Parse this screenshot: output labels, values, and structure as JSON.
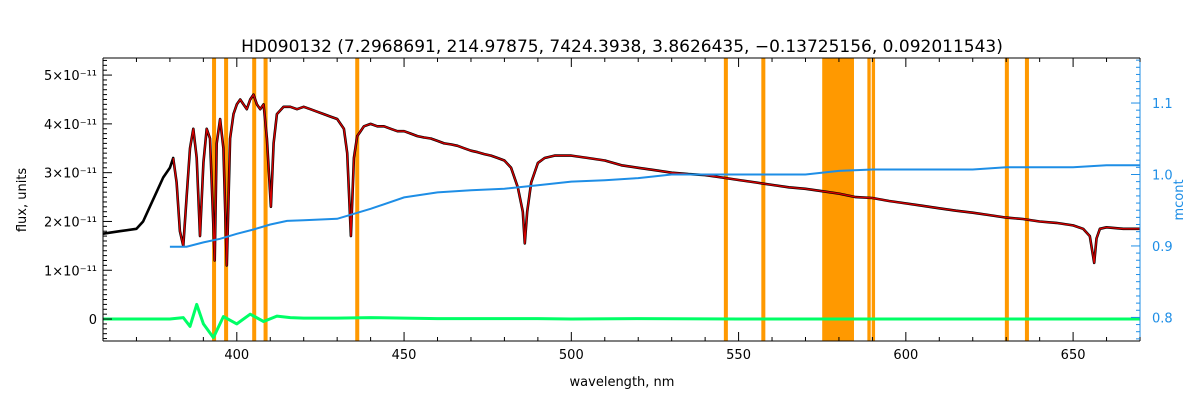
{
  "chart_data": {
    "type": "line",
    "title": "HD090132   (7.2968691, 214.97875, 7424.3938, 3.8626435, −0.13725156, 0.092011543)",
    "xlabel": "wavelength, nm",
    "ylabel": "flux, units",
    "y2label": "mcont",
    "xlim": [
      360,
      670
    ],
    "ylim": [
      -4.5e-12,
      5.35e-11
    ],
    "y2lim": [
      0.767,
      1.163
    ],
    "x_ticks": [
      400,
      450,
      500,
      550,
      600,
      650
    ],
    "x_tick_labels": [
      "400",
      "450",
      "500",
      "550",
      "600",
      "650"
    ],
    "y_ticks": [
      0,
      1e-11,
      2e-11,
      3e-11,
      4e-11,
      5e-11
    ],
    "y_tick_labels": [
      "0",
      "1×10⁻¹¹",
      "2×10⁻¹¹",
      "3×10⁻¹¹",
      "4×10⁻¹¹",
      "5×10⁻¹¹"
    ],
    "y2_ticks": [
      0.8,
      0.9,
      1.0,
      1.1
    ],
    "y2_tick_labels": [
      "0.8",
      "0.9",
      "1.0",
      "1.1"
    ],
    "masked_regions_nm": [
      [
        392.6,
        393.8
      ],
      [
        396.2,
        397.4
      ],
      [
        404.6,
        405.8
      ],
      [
        408.0,
        409.2
      ],
      [
        435.4,
        436.6
      ],
      [
        545.6,
        546.8
      ],
      [
        556.8,
        558.0
      ],
      [
        575.0,
        584.5
      ],
      [
        588.5,
        589.5
      ],
      [
        589.8,
        590.8
      ],
      [
        629.6,
        630.8
      ],
      [
        635.6,
        636.8
      ]
    ],
    "colors": {
      "observed": "#000000",
      "model": "#d40000",
      "residual": "#00ff66",
      "continuum": "#1e8ee6",
      "mask": "#ff9900",
      "right_axis": "#1e8ee6"
    },
    "series": [
      {
        "role": "observed",
        "x": [
          360,
          365,
          370,
          372,
          374,
          376,
          378,
          380,
          381,
          382,
          383,
          384,
          385,
          386,
          387,
          388,
          389,
          390,
          391,
          392,
          393.4,
          394,
          395,
          396,
          397,
          398,
          399,
          400,
          401,
          402,
          403,
          404,
          405,
          406,
          407,
          408,
          409,
          410.2,
          411,
          412,
          414,
          416,
          418,
          420,
          422,
          424,
          426,
          428,
          430,
          432,
          433,
          434.1,
          435,
          436,
          437,
          438,
          440,
          442,
          444,
          446,
          448,
          450,
          452,
          454,
          456,
          458,
          460,
          462,
          464,
          466,
          468,
          470,
          472,
          474,
          476,
          478,
          480,
          482,
          484,
          485.5,
          486.1,
          486.8,
          488,
          490,
          492,
          495,
          500,
          505,
          510,
          515,
          520,
          525,
          530,
          535,
          540,
          545,
          550,
          555,
          560,
          565,
          570,
          575,
          580,
          585,
          590,
          595,
          600,
          605,
          610,
          615,
          620,
          625,
          630,
          635,
          640,
          645,
          650,
          653,
          655,
          656.3,
          657,
          658,
          660,
          665,
          670
        ],
        "y": [
          1.75e-11,
          1.8e-11,
          1.85e-11,
          2e-11,
          2.3e-11,
          2.6e-11,
          2.9e-11,
          3.1e-11,
          3.3e-11,
          2.8e-11,
          1.8e-11,
          1.5e-11,
          2.5e-11,
          3.5e-11,
          3.9e-11,
          3.3e-11,
          1.7e-11,
          3.2e-11,
          3.9e-11,
          3.7e-11,
          1.2e-11,
          3.6e-11,
          4.1e-11,
          3.5e-11,
          1.1e-11,
          3.7e-11,
          4.2e-11,
          4.4e-11,
          4.5e-11,
          4.4e-11,
          4.3e-11,
          4.5e-11,
          4.6e-11,
          4.4e-11,
          4.3e-11,
          4.4e-11,
          3.7e-11,
          2.3e-11,
          3.6e-11,
          4.2e-11,
          4.35e-11,
          4.35e-11,
          4.3e-11,
          4.35e-11,
          4.3e-11,
          4.25e-11,
          4.2e-11,
          4.15e-11,
          4.1e-11,
          3.9e-11,
          3.4e-11,
          1.7e-11,
          3.3e-11,
          3.75e-11,
          3.85e-11,
          3.95e-11,
          4e-11,
          3.95e-11,
          3.95e-11,
          3.9e-11,
          3.85e-11,
          3.85e-11,
          3.8e-11,
          3.75e-11,
          3.72e-11,
          3.7e-11,
          3.65e-11,
          3.6e-11,
          3.58e-11,
          3.55e-11,
          3.5e-11,
          3.45e-11,
          3.42e-11,
          3.38e-11,
          3.35e-11,
          3.3e-11,
          3.25e-11,
          3.1e-11,
          2.7e-11,
          2.2e-11,
          1.55e-11,
          2.2e-11,
          2.8e-11,
          3.2e-11,
          3.3e-11,
          3.35e-11,
          3.35e-11,
          3.3e-11,
          3.25e-11,
          3.15e-11,
          3.1e-11,
          3.05e-11,
          3e-11,
          2.97e-11,
          2.95e-11,
          2.9e-11,
          2.85e-11,
          2.8e-11,
          2.75e-11,
          2.7e-11,
          2.67e-11,
          2.62e-11,
          2.57e-11,
          2.5e-11,
          2.48e-11,
          2.42e-11,
          2.37e-11,
          2.32e-11,
          2.27e-11,
          2.22e-11,
          2.18e-11,
          2.13e-11,
          2.08e-11,
          2.05e-11,
          2e-11,
          1.97e-11,
          1.92e-11,
          1.85e-11,
          1.7e-11,
          1.15e-11,
          1.65e-11,
          1.85e-11,
          1.88e-11,
          1.85e-11,
          1.85e-11
        ]
      },
      {
        "role": "continuum",
        "x": [
          380,
          385,
          390,
          395,
          400,
          405,
          410,
          415,
          420,
          430,
          440,
          450,
          460,
          470,
          480,
          490,
          500,
          510,
          520,
          530,
          540,
          550,
          560,
          570,
          580,
          590,
          600,
          610,
          620,
          630,
          640,
          650,
          660,
          670
        ],
        "y": [
          0.899,
          0.899,
          0.905,
          0.91,
          0.917,
          0.923,
          0.93,
          0.935,
          0.936,
          0.938,
          0.952,
          0.968,
          0.975,
          0.978,
          0.98,
          0.985,
          0.99,
          0.992,
          0.995,
          1.0,
          1.0,
          1.0,
          1.0,
          1.0,
          1.005,
          1.007,
          1.007,
          1.007,
          1.007,
          1.01,
          1.01,
          1.01,
          1.013,
          1.013
        ]
      },
      {
        "role": "residual",
        "x": [
          360,
          380,
          384,
          386,
          388,
          390,
          393,
          396,
          400,
          404,
          408,
          412,
          416,
          420,
          430,
          440,
          450,
          460,
          470,
          480,
          490,
          500,
          520,
          550,
          600,
          650,
          670
        ],
        "y": [
          0,
          0,
          3e-13,
          -1.5e-12,
          3e-12,
          -1e-12,
          -3.8e-12,
          5e-13,
          -1e-12,
          1e-12,
          -5e-13,
          6e-13,
          3e-13,
          2e-13,
          2e-13,
          3e-13,
          2e-13,
          1e-13,
          1e-13,
          1e-13,
          1e-13,
          0,
          1e-13,
          0,
          0,
          0,
          0
        ]
      }
    ]
  }
}
